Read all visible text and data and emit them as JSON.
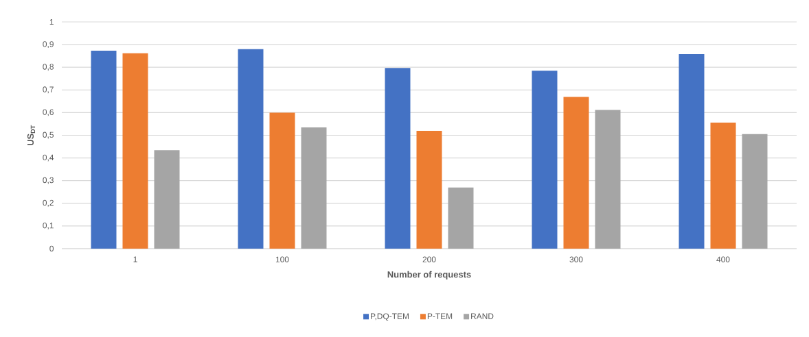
{
  "chart_data": {
    "type": "bar",
    "xlabel": "Number of requests",
    "ylabel": "US$_{DT}$",
    "categories": [
      "1",
      "100",
      "200",
      "300",
      "400"
    ],
    "series": [
      {
        "name": "P,DQ-TEM",
        "color": "#4472c4",
        "values": [
          0.873,
          0.88,
          0.797,
          0.785,
          0.858
        ]
      },
      {
        "name": "P-TEM",
        "color": "#ed7d31",
        "values": [
          0.862,
          0.6,
          0.52,
          0.669,
          0.556
        ]
      },
      {
        "name": "RAND",
        "color": "#a5a5a5",
        "values": [
          0.434,
          0.535,
          0.27,
          0.612,
          0.505
        ]
      }
    ],
    "ylim": [
      0,
      1
    ],
    "yticks": [
      0,
      {
        "value": 0.1,
        "label": "0,1"
      },
      {
        "value": 0.2,
        "label": "0,2"
      },
      {
        "value": 0.3,
        "label": "0,3"
      },
      {
        "value": 0.4,
        "label": "0,4"
      },
      {
        "value": 0.5,
        "label": "0,5"
      },
      {
        "value": 0.6,
        "label": "0,6"
      },
      {
        "value": 0.7,
        "label": "0,7"
      },
      {
        "value": 0.8,
        "label": "0,8"
      },
      {
        "value": 0.9,
        "label": "0,9"
      },
      1
    ],
    "grid": "y",
    "legend": "bottom"
  }
}
